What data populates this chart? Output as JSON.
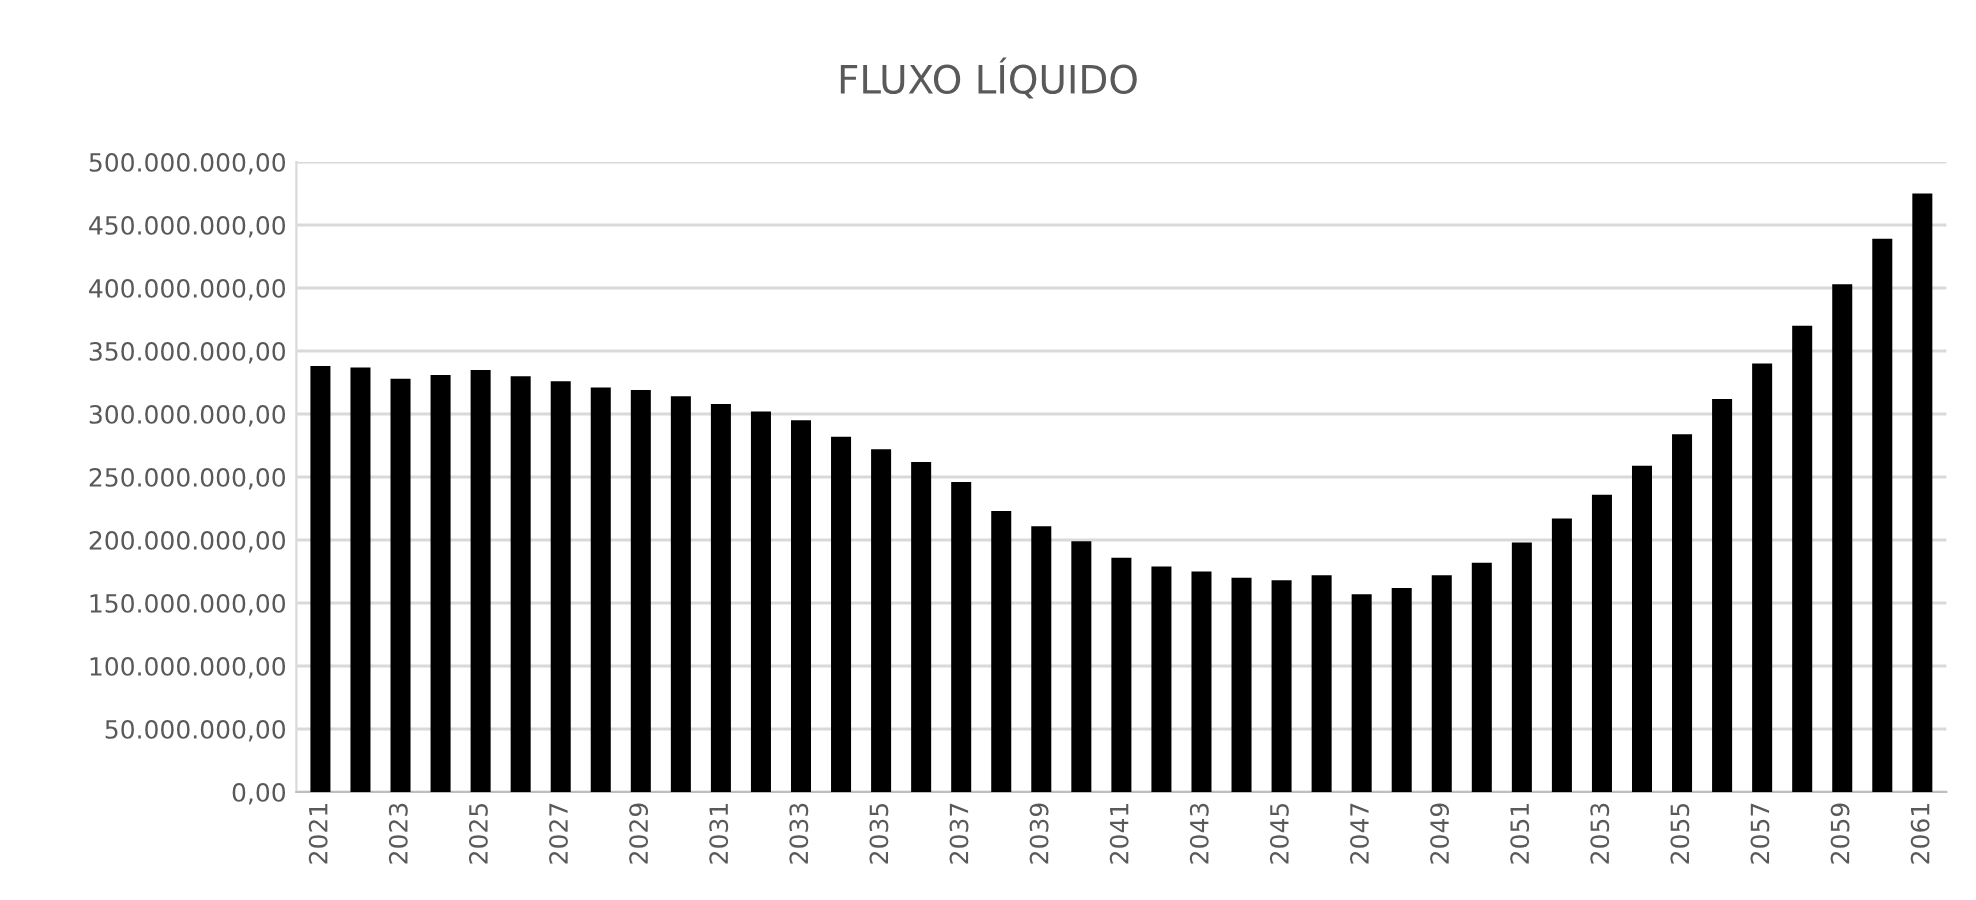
{
  "chart_data": {
    "type": "bar",
    "title": "FLUXO LÍQUIDO",
    "categories": [
      "2021",
      null,
      "2023",
      null,
      "2025",
      null,
      "2027",
      null,
      "2029",
      null,
      "2031",
      null,
      "2033",
      null,
      "2035",
      null,
      "2037",
      null,
      "2039",
      null,
      "2041",
      null,
      "2043",
      null,
      "2045",
      null,
      "2047",
      null,
      "2049",
      null,
      "2051",
      null,
      "2053",
      null,
      "2055",
      null,
      "2057",
      null,
      "2059",
      null,
      "2061"
    ],
    "values": [
      338000000,
      337000000,
      328000000,
      331000000,
      335000000,
      330000000,
      326000000,
      321000000,
      319000000,
      314000000,
      308000000,
      302000000,
      295000000,
      282000000,
      272000000,
      262000000,
      246000000,
      223000000,
      211000000,
      199000000,
      186000000,
      179000000,
      175000000,
      170000000,
      168000000,
      172000000,
      157000000,
      162000000,
      172000000,
      182000000,
      198000000,
      217000000,
      236000000,
      259000000,
      284000000,
      312000000,
      340000000,
      370000000,
      403000000,
      439000000,
      475000000
    ],
    "color": "#000000",
    "ylim": [
      0,
      500000000
    ],
    "yticks": [
      {
        "value": 0,
        "label": "0,00"
      },
      {
        "value": 50000000,
        "label": "50.000.000,00"
      },
      {
        "value": 100000000,
        "label": "100.000.000,00"
      },
      {
        "value": 150000000,
        "label": "150.000.000,00"
      },
      {
        "value": 200000000,
        "label": "200.000.000,00"
      },
      {
        "value": 250000000,
        "label": "250.000.000,00"
      },
      {
        "value": 300000000,
        "label": "300.000.000,00"
      },
      {
        "value": 350000000,
        "label": "350.000.000,00"
      },
      {
        "value": 400000000,
        "label": "400.000.000,00"
      },
      {
        "value": 450000000,
        "label": "450.000.000,00"
      },
      {
        "value": 500000000,
        "label": "500.000.000,00"
      }
    ],
    "grid": "y"
  }
}
